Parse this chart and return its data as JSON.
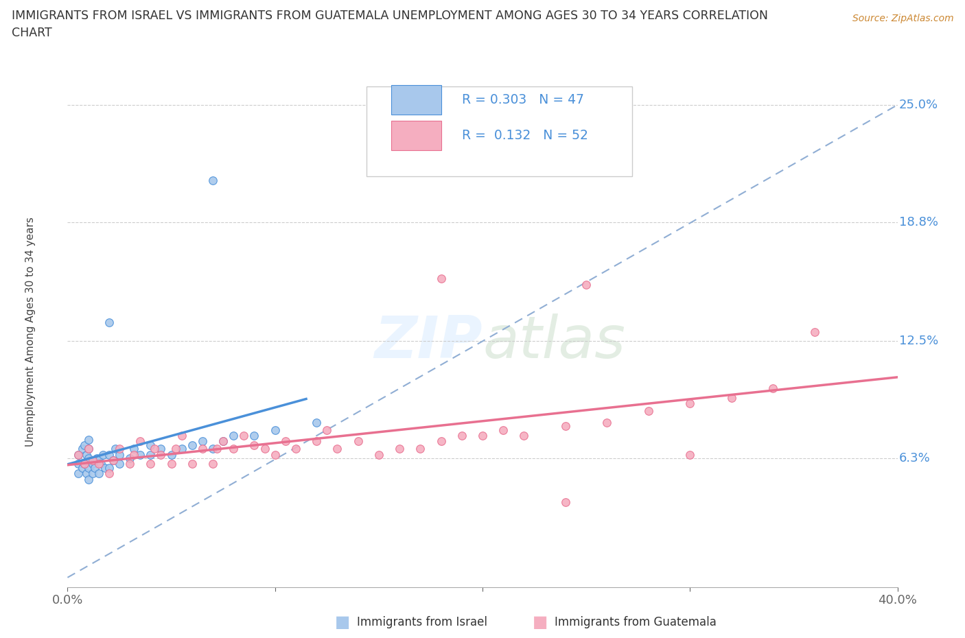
{
  "title_line1": "IMMIGRANTS FROM ISRAEL VS IMMIGRANTS FROM GUATEMALA UNEMPLOYMENT AMONG AGES 30 TO 34 YEARS CORRELATION",
  "title_line2": "CHART",
  "source": "Source: ZipAtlas.com",
  "ylabel": "Unemployment Among Ages 30 to 34 years",
  "xmin": 0.0,
  "xmax": 0.4,
  "ymin": -0.005,
  "ymax": 0.265,
  "R_israel": 0.303,
  "N_israel": 47,
  "R_guatemala": 0.132,
  "N_guatemala": 52,
  "color_israel": "#a8c8ec",
  "color_guatemala": "#f5aec0",
  "line_color_israel": "#4a90d9",
  "line_color_guatemala": "#e87090",
  "diagonal_color": "#90aed4",
  "ytick_vals": [
    0.063,
    0.125,
    0.188,
    0.25
  ],
  "ytick_labels": [
    "6.3%",
    "12.5%",
    "18.8%",
    "25.0%"
  ],
  "israel_x": [
    0.005,
    0.005,
    0.005,
    0.007,
    0.007,
    0.008,
    0.008,
    0.009,
    0.009,
    0.01,
    0.01,
    0.01,
    0.01,
    0.01,
    0.012,
    0.012,
    0.013,
    0.014,
    0.015,
    0.015,
    0.016,
    0.017,
    0.018,
    0.02,
    0.02,
    0.022,
    0.023,
    0.025,
    0.025,
    0.03,
    0.032,
    0.035,
    0.04,
    0.04,
    0.045,
    0.05,
    0.055,
    0.06,
    0.065,
    0.07,
    0.075,
    0.08,
    0.09,
    0.1,
    0.12,
    0.07,
    0.02
  ],
  "israel_y": [
    0.06,
    0.065,
    0.055,
    0.058,
    0.068,
    0.06,
    0.07,
    0.055,
    0.065,
    0.052,
    0.058,
    0.063,
    0.068,
    0.073,
    0.055,
    0.06,
    0.058,
    0.063,
    0.055,
    0.062,
    0.06,
    0.065,
    0.058,
    0.058,
    0.065,
    0.062,
    0.068,
    0.06,
    0.065,
    0.063,
    0.068,
    0.065,
    0.065,
    0.07,
    0.068,
    0.065,
    0.068,
    0.07,
    0.072,
    0.068,
    0.072,
    0.075,
    0.075,
    0.078,
    0.082,
    0.21,
    0.135
  ],
  "guatemala_x": [
    0.005,
    0.008,
    0.01,
    0.012,
    0.015,
    0.02,
    0.022,
    0.025,
    0.03,
    0.032,
    0.035,
    0.04,
    0.042,
    0.045,
    0.05,
    0.052,
    0.055,
    0.06,
    0.065,
    0.07,
    0.072,
    0.075,
    0.08,
    0.085,
    0.09,
    0.095,
    0.1,
    0.105,
    0.11,
    0.12,
    0.125,
    0.13,
    0.14,
    0.15,
    0.16,
    0.17,
    0.18,
    0.19,
    0.2,
    0.21,
    0.22,
    0.24,
    0.25,
    0.26,
    0.28,
    0.3,
    0.3,
    0.32,
    0.34,
    0.36,
    0.18,
    0.24
  ],
  "guatemala_y": [
    0.065,
    0.06,
    0.068,
    0.062,
    0.06,
    0.055,
    0.062,
    0.068,
    0.06,
    0.065,
    0.072,
    0.06,
    0.068,
    0.065,
    0.06,
    0.068,
    0.075,
    0.06,
    0.068,
    0.06,
    0.068,
    0.072,
    0.068,
    0.075,
    0.07,
    0.068,
    0.065,
    0.072,
    0.068,
    0.072,
    0.078,
    0.068,
    0.072,
    0.065,
    0.068,
    0.068,
    0.072,
    0.075,
    0.075,
    0.078,
    0.075,
    0.08,
    0.155,
    0.082,
    0.088,
    0.065,
    0.092,
    0.095,
    0.1,
    0.13,
    0.158,
    0.04
  ]
}
